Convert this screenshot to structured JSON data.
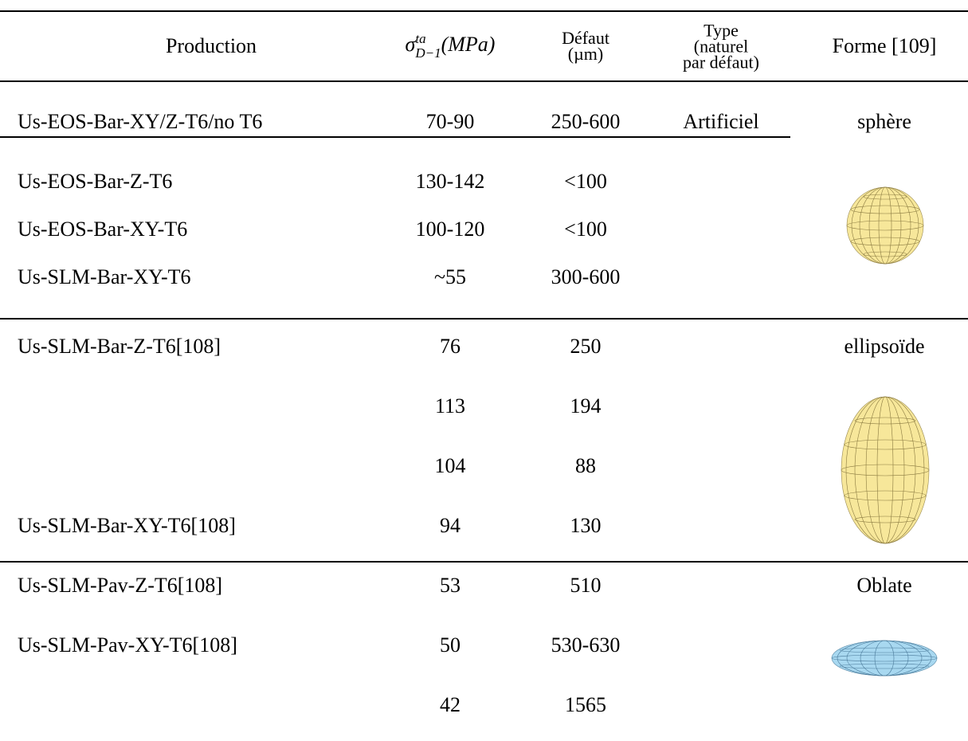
{
  "header": {
    "columns": [
      "Production",
      {
        "symbol": "σ",
        "sup": "ta",
        "sub": "D−1",
        "unit": "(MPa)"
      },
      [
        "Défaut",
        "(µm)"
      ],
      [
        "Type",
        "(naturel",
        "par défaut)"
      ],
      "Forme [109]"
    ]
  },
  "rows": [
    {
      "production": "Us-EOS-Bar-XY/Z-T6/no T6",
      "stress": "70-90",
      "defect": "250-600",
      "type": "Artificiel"
    },
    {
      "production": "Us-EOS-Bar-Z-T6",
      "stress": "130-142",
      "defect": "<100"
    },
    {
      "production": "Us-EOS-Bar-XY-T6",
      "stress": "100-120",
      "defect": "<100"
    },
    {
      "production": "Us-SLM-Bar-XY-T6",
      "stress": "~55",
      "defect": "300-600"
    },
    {
      "production": "Us-SLM-Bar-Z-T6[108]",
      "stress": "76",
      "defect": "250"
    },
    {
      "stress": "113",
      "defect": "194"
    },
    {
      "stress": "104",
      "defect": "88"
    },
    {
      "production": "Us-SLM-Bar-XY-T6[108]",
      "stress": "94",
      "defect": "130"
    },
    {
      "production": "Us-SLM-Pav-Z-T6[108]",
      "stress": "53",
      "defect": "510"
    },
    {
      "production": "Us-SLM-Pav-XY-T6[108]",
      "stress": "50",
      "defect": "530-630"
    },
    {
      "stress": "42",
      "defect": "1565"
    }
  ],
  "shapes": [
    "sphère",
    "ellipsoïde",
    "Oblate"
  ]
}
